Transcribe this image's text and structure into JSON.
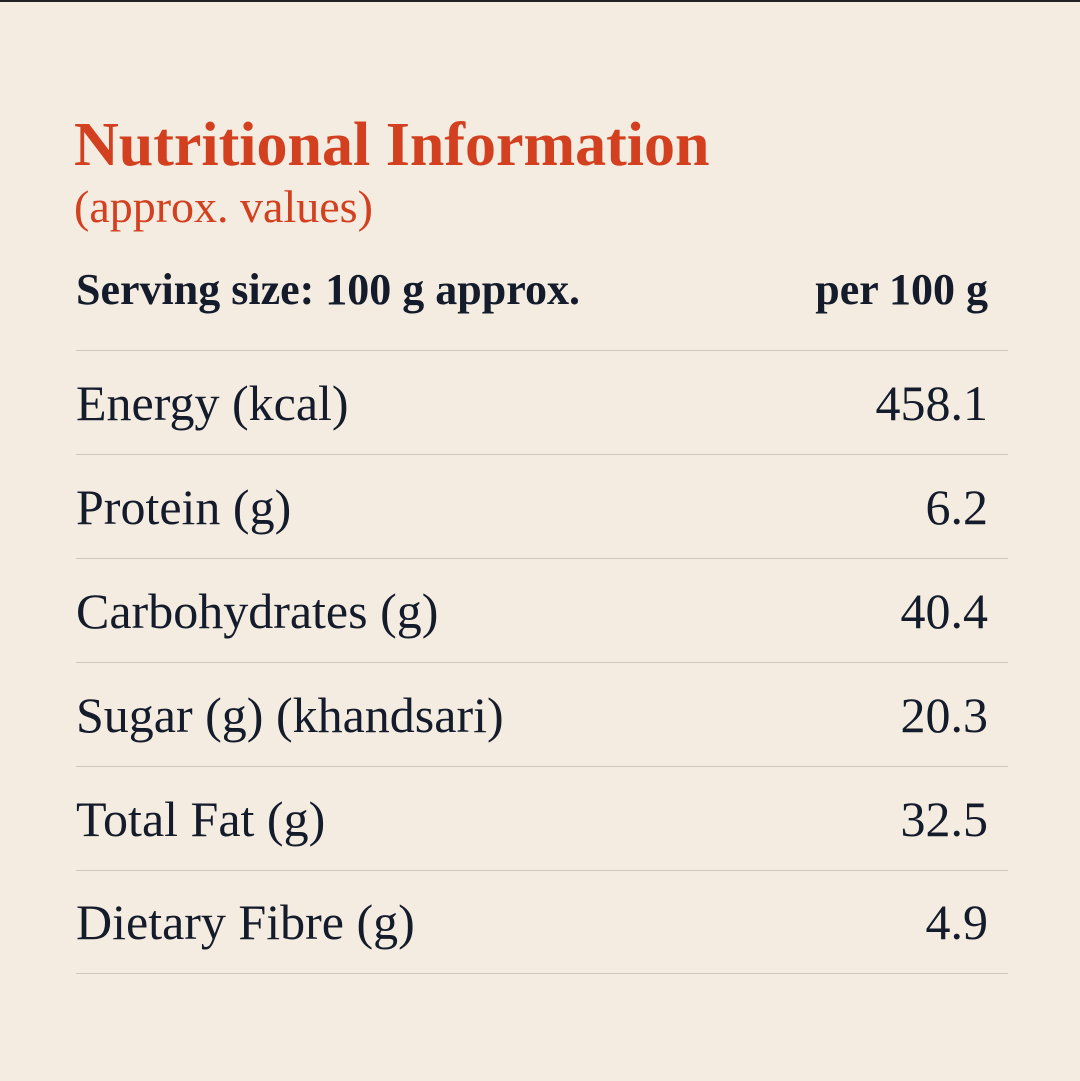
{
  "header": {
    "title": "Nutritional Information",
    "subtitle": "(approx. values)"
  },
  "table": {
    "header": [
      "Serving size: 100 g approx.",
      "per 100 g"
    ],
    "rows": [
      [
        "Energy (kcal)",
        "458.1"
      ],
      [
        "Protein (g)",
        "6.2"
      ],
      [
        "Carbohydrates (g)",
        "40.4"
      ],
      [
        "Sugar (g) (khandsari)",
        "20.3"
      ],
      [
        "Total Fat (g)",
        "32.5"
      ],
      [
        "Dietary Fibre (g)",
        "4.9"
      ]
    ]
  }
}
